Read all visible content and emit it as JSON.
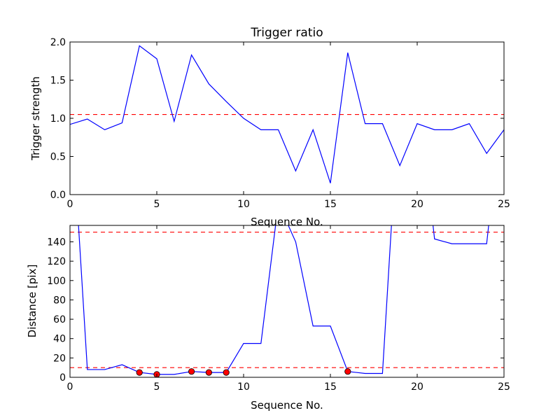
{
  "chart_data": [
    {
      "type": "line",
      "title": "Trigger ratio",
      "xlabel": "Sequence No.",
      "ylabel": "Trigger strength",
      "xlim": [
        0,
        25
      ],
      "ylim": [
        0,
        2.0
      ],
      "xticks": [
        0,
        5,
        10,
        15,
        20,
        25
      ],
      "yticks": [
        "0.0",
        "0.5",
        "1.0",
        "1.5",
        "2.0"
      ],
      "grid": false,
      "line_color": "#0000ff",
      "threshold_color": "#ff0000",
      "x": [
        0,
        1,
        2,
        3,
        4,
        5,
        6,
        7,
        8,
        9,
        10,
        11,
        12,
        13,
        14,
        15,
        16,
        17,
        18,
        19,
        20,
        21,
        22,
        23,
        24,
        25
      ],
      "y": [
        0.92,
        0.99,
        0.85,
        0.94,
        1.95,
        1.78,
        0.96,
        1.83,
        1.45,
        1.22,
        1.0,
        0.85,
        0.85,
        0.31,
        0.85,
        0.15,
        1.86,
        0.93,
        0.93,
        0.38,
        0.93,
        0.85,
        0.85,
        0.93,
        0.54,
        0.85
      ],
      "thresholds": [
        1.05
      ]
    },
    {
      "type": "line",
      "title": "",
      "xlabel": "Sequence No.",
      "ylabel": "Distance [pix]",
      "xlim": [
        0,
        25
      ],
      "ylim": [
        0,
        157
      ],
      "xticks": [
        0,
        5,
        10,
        15,
        20,
        25
      ],
      "yticks": [
        0,
        20,
        40,
        60,
        80,
        100,
        120,
        140
      ],
      "grid": false,
      "line_color": "#0000ff",
      "threshold_color": "#ff0000",
      "marker_color": "#ff0000",
      "x": [
        0,
        1,
        2,
        3,
        4,
        5,
        6,
        7,
        8,
        9,
        10,
        11,
        12,
        13,
        14,
        15,
        16,
        17,
        18,
        19,
        20,
        21,
        22,
        23,
        24,
        25
      ],
      "y": [
        300,
        8,
        8,
        13,
        5,
        3,
        3,
        6,
        5,
        5,
        35,
        35,
        180,
        140,
        53,
        53,
        6,
        4,
        4,
        300,
        300,
        143,
        138,
        138,
        138,
        300
      ],
      "thresholds": [
        150,
        10
      ],
      "markers": {
        "x": [
          4,
          5,
          7,
          8,
          9,
          16
        ],
        "y": [
          5,
          3,
          6,
          5,
          5,
          6
        ]
      }
    }
  ]
}
